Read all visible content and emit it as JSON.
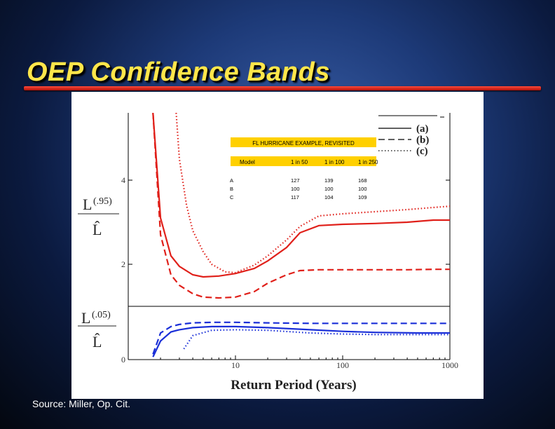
{
  "slide": {
    "title": "OEP Confidence Bands",
    "source": "Source:  Miller, Op. Cit."
  },
  "colors": {
    "title": "#ffe64a",
    "rule": "#d2140c",
    "upper_band": "#e0201a",
    "lower_band": "#1a2fd8",
    "inset_header": "#ffd000"
  },
  "inset_table": {
    "title": "FL HURRICANE EXAMPLE, REVISITED",
    "header": [
      "Model",
      "1 in 50",
      "1 in 100",
      "1 in 250"
    ],
    "rows": [
      [
        "A",
        "127",
        "139",
        "168"
      ],
      [
        "B",
        "100",
        "100",
        "100"
      ],
      [
        "C",
        "117",
        "104",
        "109"
      ]
    ]
  },
  "chart_data": {
    "type": "line",
    "xlabel": "Return Period (Years)",
    "xscale": "log",
    "xlim": [
      1,
      1000
    ],
    "x_ticks": [
      "10",
      "100",
      "1000"
    ],
    "legend": [
      "(a)",
      "(b)",
      "(c)"
    ],
    "legend_position": "top-right",
    "panels": [
      {
        "name": "upper",
        "ylabel_top": "L",
        "ylabel_sup": "(.95)",
        "ylabel_bottom": "L̂",
        "ylim": [
          1,
          5.6
        ],
        "y_ticks": [
          "2",
          "4"
        ],
        "series": [
          {
            "name": "(a)",
            "style": "solid",
            "x": [
              1.7,
              2,
              2.5,
              3,
              4,
              5,
              7,
              10,
              15,
              20,
              30,
              40,
              60,
              100,
              200,
              400,
              700,
              1000
            ],
            "y": [
              5.6,
              3.1,
              2.2,
              1.95,
              1.75,
              1.7,
              1.72,
              1.78,
              1.9,
              2.08,
              2.4,
              2.75,
              2.92,
              2.95,
              2.97,
              3.0,
              3.05,
              3.05
            ]
          },
          {
            "name": "(b)",
            "style": "dashed",
            "x": [
              1.7,
              2,
              2.5,
              3,
              4,
              5,
              7,
              10,
              15,
              20,
              30,
              40,
              60,
              100,
              200,
              400,
              700,
              1000
            ],
            "y": [
              5.6,
              2.7,
              1.75,
              1.5,
              1.3,
              1.22,
              1.2,
              1.22,
              1.35,
              1.55,
              1.75,
              1.85,
              1.87,
              1.87,
              1.87,
              1.87,
              1.88,
              1.88
            ]
          },
          {
            "name": "(c)",
            "style": "dotted",
            "x": [
              2.8,
              3,
              3.5,
              4,
              5,
              6,
              8,
              10,
              15,
              20,
              30,
              40,
              60,
              100,
              200,
              400,
              700,
              1000
            ],
            "y": [
              5.6,
              4.5,
              3.4,
              2.8,
              2.3,
              2.0,
              1.82,
              1.8,
              1.98,
              2.2,
              2.58,
              2.9,
              3.15,
              3.2,
              3.25,
              3.3,
              3.35,
              3.38
            ]
          }
        ]
      },
      {
        "name": "lower",
        "ylabel_top": "L",
        "ylabel_sup": "(.05)",
        "ylabel_bottom": "L̂",
        "ylim": [
          0,
          1
        ],
        "y_ticks": [
          "0"
        ],
        "series": [
          {
            "name": "(a)",
            "style": "solid",
            "x": [
              1.7,
              2,
              2.5,
              3,
              4,
              6,
              10,
              20,
              50,
              100,
              200,
              500,
              1000
            ],
            "y": [
              0.05,
              0.35,
              0.52,
              0.56,
              0.6,
              0.62,
              0.62,
              0.6,
              0.56,
              0.53,
              0.51,
              0.5,
              0.5
            ]
          },
          {
            "name": "(b)",
            "style": "dashed",
            "x": [
              1.7,
              2,
              2.5,
              3,
              4,
              6,
              10,
              20,
              50,
              100,
              200,
              500,
              1000
            ],
            "y": [
              0.1,
              0.5,
              0.62,
              0.66,
              0.69,
              0.7,
              0.7,
              0.69,
              0.68,
              0.68,
              0.68,
              0.68,
              0.68
            ]
          },
          {
            "name": "(c)",
            "style": "dotted",
            "x": [
              3.3,
              4,
              6,
              10,
              20,
              50,
              100,
              200,
              500,
              1000
            ],
            "y": [
              0.2,
              0.45,
              0.55,
              0.56,
              0.55,
              0.5,
              0.48,
              0.47,
              0.47,
              0.47
            ]
          }
        ]
      }
    ]
  }
}
